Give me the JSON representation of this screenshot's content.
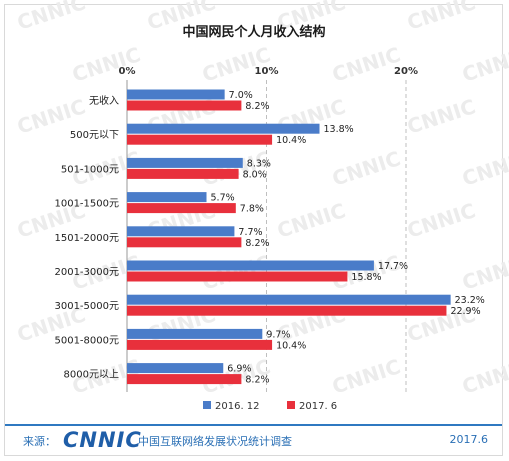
{
  "chart_data": {
    "type": "bar",
    "orientation": "horizontal",
    "title": "中国网民个人月收入结构",
    "categories": [
      "无收入",
      "500元以下",
      "501-1000元",
      "1001-1500元",
      "1501-2000元",
      "2001-3000元",
      "3001-5000元",
      "5001-8000元",
      "8000元以上"
    ],
    "series": [
      {
        "name": "2016. 12",
        "color": "#4a7cc9",
        "values": [
          7.0,
          13.8,
          8.3,
          5.7,
          7.7,
          17.7,
          23.2,
          9.7,
          6.9
        ]
      },
      {
        "name": "2017. 6",
        "color": "#e8303c",
        "values": [
          8.2,
          10.4,
          8.0,
          7.8,
          8.2,
          15.8,
          22.9,
          10.4,
          8.2
        ]
      }
    ],
    "value_labels_unit": "%",
    "xlim": [
      0,
      25
    ],
    "xticks": [
      "0%",
      "10%",
      "20%"
    ],
    "xtick_values": [
      0,
      10,
      20
    ],
    "grid": true,
    "axis_position": "top",
    "legend_position": "bottom"
  },
  "watermark": "CNNIC",
  "footer": {
    "source_label": "来源：",
    "logo_text": "CNNIC",
    "org_text": "中国互联网络发展状况统计调查",
    "date_text": "2017.6"
  }
}
